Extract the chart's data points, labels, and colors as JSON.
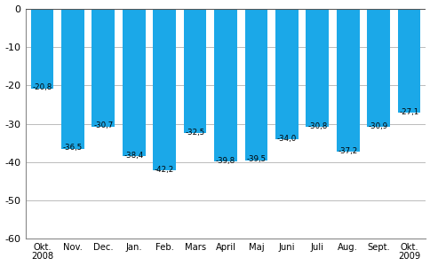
{
  "categories": [
    "Okt.\n2008",
    "Nov.",
    "Dec.",
    "Jan.",
    "Feb.",
    "Mars",
    "April",
    "Maj",
    "Juni",
    "Juli",
    "Aug.",
    "Sept.",
    "Okt.\n2009"
  ],
  "values": [
    -20.8,
    -36.5,
    -30.7,
    -38.4,
    -42.2,
    -32.5,
    -39.8,
    -39.5,
    -34.0,
    -30.8,
    -37.2,
    -30.9,
    -27.1
  ],
  "labels": [
    "-20,8",
    "-36,5",
    "-30,7",
    "-38,4",
    "-42,2",
    "-32,5",
    "-39,8",
    "-39,5",
    "-34,0",
    "-30,8",
    "-37,2",
    "-30,9",
    "-27,1"
  ],
  "bar_color": "#1ba8e8",
  "ylim": [
    -60,
    0
  ],
  "yticks": [
    0,
    -10,
    -20,
    -30,
    -40,
    -50,
    -60
  ],
  "grid_color": "#bbbbbb",
  "background_color": "#ffffff",
  "label_offsets": [
    2.0,
    2.0,
    2.0,
    2.0,
    2.0,
    2.0,
    2.0,
    2.0,
    2.0,
    2.0,
    2.0,
    2.0,
    2.0
  ]
}
